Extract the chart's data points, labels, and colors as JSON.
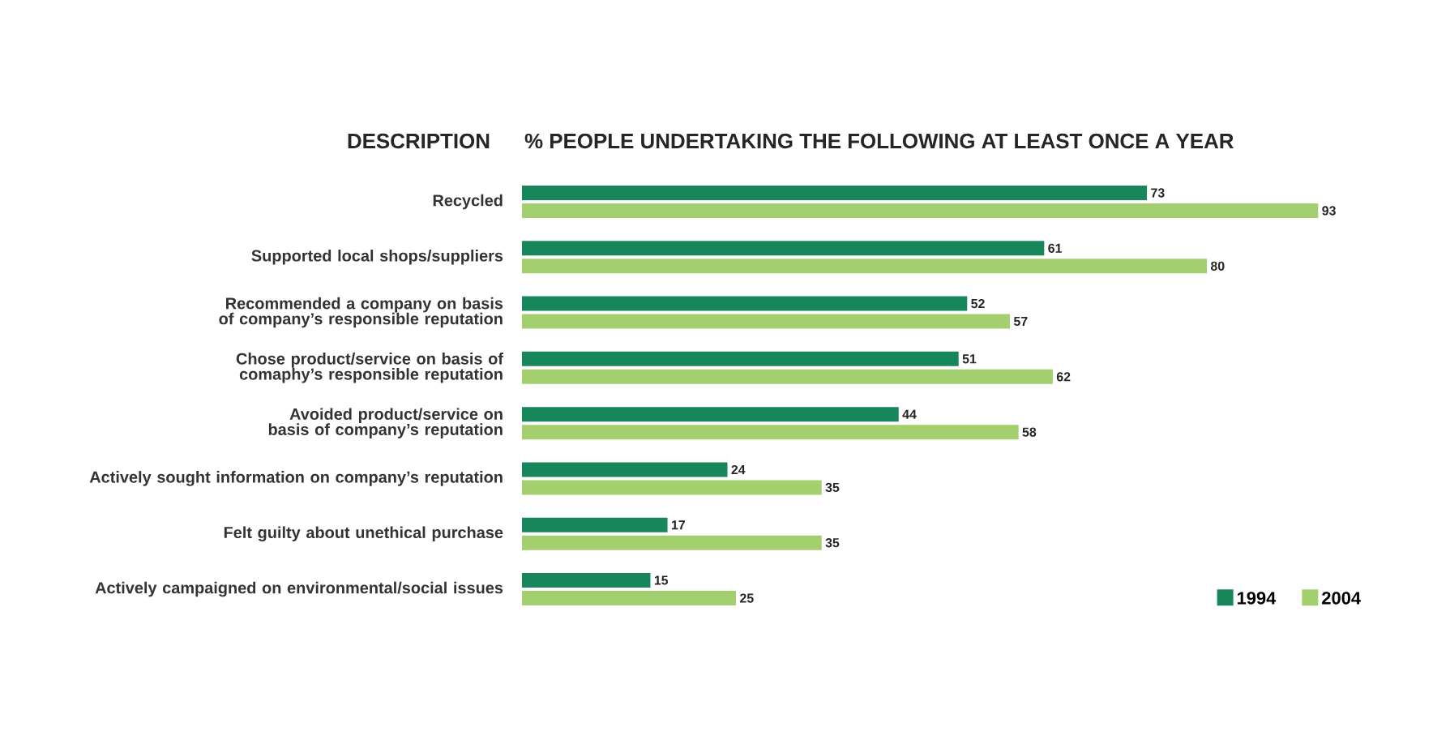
{
  "chart_data": {
    "type": "bar",
    "orientation": "horizontal",
    "title": "% PEOPLE UNDERTAKING THE FOLLOWING AT LEAST ONCE A YEAR",
    "ylabel": "DESCRIPTION",
    "categories": [
      "Recycled",
      "Supported local shops/suppliers",
      "Recommended a company on basis of company’s responsible reputation",
      "Chose product/service on basis of comaphy’s responsible reputation",
      "Avoided product/service on basis of company’s reputation",
      "Actively sought information on company’s reputation",
      "Felt guilty about unethical purchase",
      "Actively campaigned on environmental/social issues"
    ],
    "series": [
      {
        "name": "1994",
        "color": "#17875b",
        "values": [
          73,
          61,
          52,
          51,
          44,
          24,
          17,
          15
        ],
        "value_labels": [
          "73",
          "61",
          "52",
          "51",
          "44",
          "24",
          "17",
          "15"
        ]
      },
      {
        "name": "2004",
        "color": "#a3cf6e",
        "values": [
          93,
          80,
          57,
          62,
          58,
          35,
          35,
          25
        ],
        "value_labels": [
          "93",
          "80",
          "57",
          "62",
          "58",
          "35",
          "35",
          "25"
        ]
      }
    ],
    "legend": "bottom right"
  }
}
